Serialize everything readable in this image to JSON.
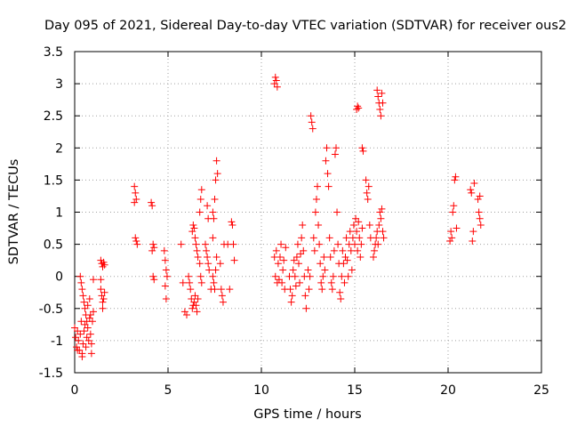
{
  "chart_data": {
    "type": "scatter",
    "title": "Day 095 of 2021, Sidereal Day-to-day VTEC variation (SDTVAR) for receiver ous2",
    "xlabel": "GPS time / hours",
    "ylabel": "SDTVAR / TECUs",
    "xlim": [
      0,
      25
    ],
    "ylim": [
      -1.5,
      3.5
    ],
    "x_ticks": [
      0,
      5,
      10,
      15,
      20,
      25
    ],
    "x_tick_labels": [
      "0",
      "5",
      "10",
      "15",
      "20",
      "25"
    ],
    "y_ticks": [
      -1.5,
      -1,
      -0.5,
      0,
      0.5,
      1,
      1.5,
      2,
      2.5,
      3,
      3.5
    ],
    "y_tick_labels": [
      "-1.5",
      "-1",
      "-0.5",
      "0",
      "0.5",
      "1",
      "1.5",
      "2",
      "2.5",
      "3",
      "3.5"
    ],
    "grid": true,
    "marker": "plus",
    "color": "#ff0000",
    "series": [
      {
        "name": "SDTVAR",
        "points": [
          [
            0.0,
            -0.8
          ],
          [
            0.05,
            -0.95
          ],
          [
            0.1,
            -1.1
          ],
          [
            0.15,
            -0.85
          ],
          [
            0.2,
            -1.0
          ],
          [
            0.25,
            -1.15
          ],
          [
            0.3,
            -0.9
          ],
          [
            0.35,
            -0.7
          ],
          [
            0.4,
            -1.2
          ],
          [
            0.45,
            -1.05
          ],
          [
            0.5,
            -0.85
          ],
          [
            0.55,
            -0.75
          ],
          [
            0.6,
            -1.1
          ],
          [
            0.65,
            -0.95
          ],
          [
            0.7,
            -0.8
          ],
          [
            0.75,
            -1.0
          ],
          [
            0.8,
            -0.65
          ],
          [
            0.85,
            -0.9
          ],
          [
            0.9,
            -1.2
          ],
          [
            0.95,
            -0.7
          ],
          [
            1.0,
            -0.55
          ],
          [
            0.7,
            -0.45
          ],
          [
            0.8,
            -0.35
          ],
          [
            0.85,
            -0.6
          ],
          [
            0.3,
            0.0
          ],
          [
            0.35,
            -0.1
          ],
          [
            0.4,
            -0.2
          ],
          [
            0.45,
            -0.3
          ],
          [
            0.5,
            -0.4
          ],
          [
            0.55,
            -0.5
          ],
          [
            0.6,
            -0.6
          ],
          [
            0.65,
            -0.7
          ],
          [
            1.0,
            -0.05
          ],
          [
            0.4,
            -1.25
          ],
          [
            0.15,
            -1.15
          ],
          [
            0.9,
            -1.05
          ],
          [
            1.4,
            0.25
          ],
          [
            1.45,
            0.2
          ],
          [
            1.5,
            0.15
          ],
          [
            1.55,
            0.22
          ],
          [
            1.6,
            0.18
          ],
          [
            1.4,
            -0.2
          ],
          [
            1.45,
            -0.3
          ],
          [
            1.5,
            -0.4
          ],
          [
            1.55,
            -0.35
          ],
          [
            1.6,
            -0.25
          ],
          [
            1.4,
            -0.05
          ],
          [
            1.5,
            -0.5
          ],
          [
            3.2,
            1.4
          ],
          [
            3.25,
            1.3
          ],
          [
            3.3,
            1.2
          ],
          [
            3.2,
            1.15
          ],
          [
            3.25,
            0.6
          ],
          [
            3.3,
            0.55
          ],
          [
            3.35,
            0.5
          ],
          [
            4.1,
            1.15
          ],
          [
            4.15,
            1.1
          ],
          [
            4.2,
            0.5
          ],
          [
            4.25,
            0.45
          ],
          [
            4.2,
            0.0
          ],
          [
            4.25,
            -0.05
          ],
          [
            4.15,
            0.4
          ],
          [
            4.8,
            0.4
          ],
          [
            4.85,
            0.25
          ],
          [
            4.9,
            0.1
          ],
          [
            4.95,
            0.0
          ],
          [
            4.85,
            -0.15
          ],
          [
            4.9,
            -0.35
          ],
          [
            5.7,
            0.5
          ],
          [
            5.8,
            -0.1
          ],
          [
            5.9,
            -0.55
          ],
          [
            6.0,
            -0.6
          ],
          [
            6.1,
            0.0
          ],
          [
            6.15,
            -0.1
          ],
          [
            6.2,
            -0.2
          ],
          [
            6.25,
            -0.35
          ],
          [
            6.3,
            -0.5
          ],
          [
            6.35,
            -0.45
          ],
          [
            6.4,
            -0.4
          ],
          [
            6.45,
            -0.3
          ],
          [
            6.5,
            -0.45
          ],
          [
            6.55,
            -0.55
          ],
          [
            6.6,
            -0.35
          ],
          [
            6.3,
            0.7
          ],
          [
            6.35,
            0.8
          ],
          [
            6.4,
            0.75
          ],
          [
            6.45,
            0.6
          ],
          [
            6.5,
            0.5
          ],
          [
            6.55,
            0.4
          ],
          [
            6.6,
            0.3
          ],
          [
            6.7,
            1.0
          ],
          [
            6.75,
            1.2
          ],
          [
            6.8,
            1.35
          ],
          [
            6.7,
            0.2
          ],
          [
            6.75,
            0.0
          ],
          [
            6.8,
            -0.1
          ],
          [
            7.0,
            0.5
          ],
          [
            7.05,
            0.4
          ],
          [
            7.1,
            0.3
          ],
          [
            7.15,
            0.2
          ],
          [
            7.2,
            0.1
          ],
          [
            7.3,
            -0.2
          ],
          [
            7.1,
            1.1
          ],
          [
            7.15,
            0.9
          ],
          [
            7.4,
            0.6
          ],
          [
            7.45,
            0.9
          ],
          [
            7.5,
            1.2
          ],
          [
            7.55,
            1.5
          ],
          [
            7.6,
            1.8
          ],
          [
            7.65,
            1.6
          ],
          [
            7.4,
            1.0
          ],
          [
            7.4,
            0.0
          ],
          [
            7.45,
            -0.1
          ],
          [
            7.5,
            -0.2
          ],
          [
            7.55,
            0.1
          ],
          [
            7.6,
            0.3
          ],
          [
            7.8,
            0.2
          ],
          [
            7.85,
            -0.2
          ],
          [
            7.9,
            -0.3
          ],
          [
            7.95,
            -0.4
          ],
          [
            8.0,
            0.5
          ],
          [
            8.2,
            0.5
          ],
          [
            8.3,
            -0.2
          ],
          [
            8.4,
            0.85
          ],
          [
            8.45,
            0.8
          ],
          [
            8.5,
            0.5
          ],
          [
            8.55,
            0.25
          ],
          [
            10.7,
            3.0
          ],
          [
            10.75,
            3.1
          ],
          [
            10.8,
            3.05
          ],
          [
            10.85,
            2.95
          ],
          [
            10.7,
            0.3
          ],
          [
            10.75,
            0.0
          ],
          [
            10.8,
            0.4
          ],
          [
            10.85,
            -0.1
          ],
          [
            10.9,
            0.2
          ],
          [
            10.95,
            -0.05
          ],
          [
            11.0,
            0.3
          ],
          [
            11.05,
            0.5
          ],
          [
            11.1,
            -0.1
          ],
          [
            11.15,
            0.1
          ],
          [
            11.2,
            0.25
          ],
          [
            11.25,
            -0.2
          ],
          [
            11.3,
            0.45
          ],
          [
            11.5,
            0.0
          ],
          [
            11.55,
            -0.2
          ],
          [
            11.6,
            -0.4
          ],
          [
            11.65,
            -0.3
          ],
          [
            11.7,
            0.1
          ],
          [
            11.75,
            0.25
          ],
          [
            11.8,
            0.0
          ],
          [
            11.85,
            -0.15
          ],
          [
            11.9,
            0.3
          ],
          [
            11.95,
            0.5
          ],
          [
            12.0,
            0.2
          ],
          [
            12.05,
            -0.1
          ],
          [
            12.1,
            0.35
          ],
          [
            12.15,
            0.6
          ],
          [
            12.2,
            0.8
          ],
          [
            12.25,
            0.4
          ],
          [
            12.3,
            0.0
          ],
          [
            12.35,
            -0.3
          ],
          [
            12.4,
            -0.5
          ],
          [
            12.5,
            0.1
          ],
          [
            12.55,
            -0.2
          ],
          [
            12.6,
            0.0
          ],
          [
            12.65,
            2.5
          ],
          [
            12.7,
            2.4
          ],
          [
            12.75,
            2.3
          ],
          [
            12.8,
            0.6
          ],
          [
            12.85,
            0.4
          ],
          [
            12.9,
            1.0
          ],
          [
            12.95,
            1.2
          ],
          [
            13.0,
            1.4
          ],
          [
            13.05,
            0.8
          ],
          [
            13.1,
            0.5
          ],
          [
            13.15,
            0.2
          ],
          [
            13.2,
            -0.1
          ],
          [
            13.25,
            -0.2
          ],
          [
            13.3,
            0.0
          ],
          [
            13.35,
            0.3
          ],
          [
            13.4,
            0.1
          ],
          [
            13.45,
            1.8
          ],
          [
            13.5,
            2.0
          ],
          [
            13.55,
            1.6
          ],
          [
            13.6,
            1.4
          ],
          [
            13.65,
            0.6
          ],
          [
            13.7,
            0.3
          ],
          [
            13.75,
            -0.1
          ],
          [
            13.8,
            -0.2
          ],
          [
            13.85,
            0.0
          ],
          [
            13.9,
            0.4
          ],
          [
            13.95,
            1.9
          ],
          [
            14.0,
            2.0
          ],
          [
            14.05,
            1.0
          ],
          [
            14.1,
            0.5
          ],
          [
            14.15,
            0.2
          ],
          [
            14.2,
            -0.25
          ],
          [
            14.25,
            -0.35
          ],
          [
            14.3,
            0.0
          ],
          [
            14.35,
            0.4
          ],
          [
            14.4,
            0.2
          ],
          [
            14.45,
            -0.1
          ],
          [
            14.5,
            0.3
          ],
          [
            14.55,
            0.6
          ],
          [
            14.6,
            0.25
          ],
          [
            14.65,
            0.0
          ],
          [
            14.7,
            0.5
          ],
          [
            14.75,
            0.7
          ],
          [
            14.8,
            0.4
          ],
          [
            14.85,
            0.1
          ],
          [
            14.9,
            0.6
          ],
          [
            14.95,
            0.8
          ],
          [
            15.0,
            0.5
          ],
          [
            15.05,
            0.9
          ],
          [
            15.1,
            0.7
          ],
          [
            15.15,
            0.4
          ],
          [
            15.2,
            0.85
          ],
          [
            15.25,
            0.6
          ],
          [
            15.3,
            0.3
          ],
          [
            15.35,
            0.5
          ],
          [
            15.4,
            0.75
          ],
          [
            15.1,
            2.6
          ],
          [
            15.15,
            2.65
          ],
          [
            15.2,
            2.62
          ],
          [
            15.4,
            2.0
          ],
          [
            15.45,
            1.95
          ],
          [
            15.6,
            1.5
          ],
          [
            15.65,
            1.3
          ],
          [
            15.7,
            1.2
          ],
          [
            15.75,
            1.4
          ],
          [
            15.8,
            0.8
          ],
          [
            15.85,
            0.6
          ],
          [
            16.0,
            0.3
          ],
          [
            16.05,
            0.4
          ],
          [
            16.1,
            0.5
          ],
          [
            16.15,
            0.6
          ],
          [
            16.2,
            0.7
          ],
          [
            16.25,
            0.5
          ],
          [
            16.3,
            0.8
          ],
          [
            16.35,
            1.0
          ],
          [
            16.4,
            0.9
          ],
          [
            16.45,
            1.05
          ],
          [
            16.5,
            0.7
          ],
          [
            16.55,
            0.6
          ],
          [
            16.2,
            2.9
          ],
          [
            16.25,
            2.8
          ],
          [
            16.3,
            2.7
          ],
          [
            16.35,
            2.6
          ],
          [
            16.4,
            2.5
          ],
          [
            16.45,
            2.85
          ],
          [
            16.5,
            2.7
          ],
          [
            20.1,
            0.55
          ],
          [
            20.15,
            0.7
          ],
          [
            20.2,
            0.6
          ],
          [
            20.25,
            1.0
          ],
          [
            20.3,
            1.1
          ],
          [
            20.35,
            1.5
          ],
          [
            20.4,
            1.55
          ],
          [
            20.45,
            0.75
          ],
          [
            21.2,
            1.35
          ],
          [
            21.25,
            1.3
          ],
          [
            21.3,
            0.55
          ],
          [
            21.35,
            0.7
          ],
          [
            21.4,
            1.45
          ],
          [
            21.6,
            1.2
          ],
          [
            21.65,
            1.0
          ],
          [
            21.7,
            0.9
          ],
          [
            21.75,
            0.8
          ],
          [
            21.7,
            1.25
          ]
        ]
      }
    ]
  }
}
